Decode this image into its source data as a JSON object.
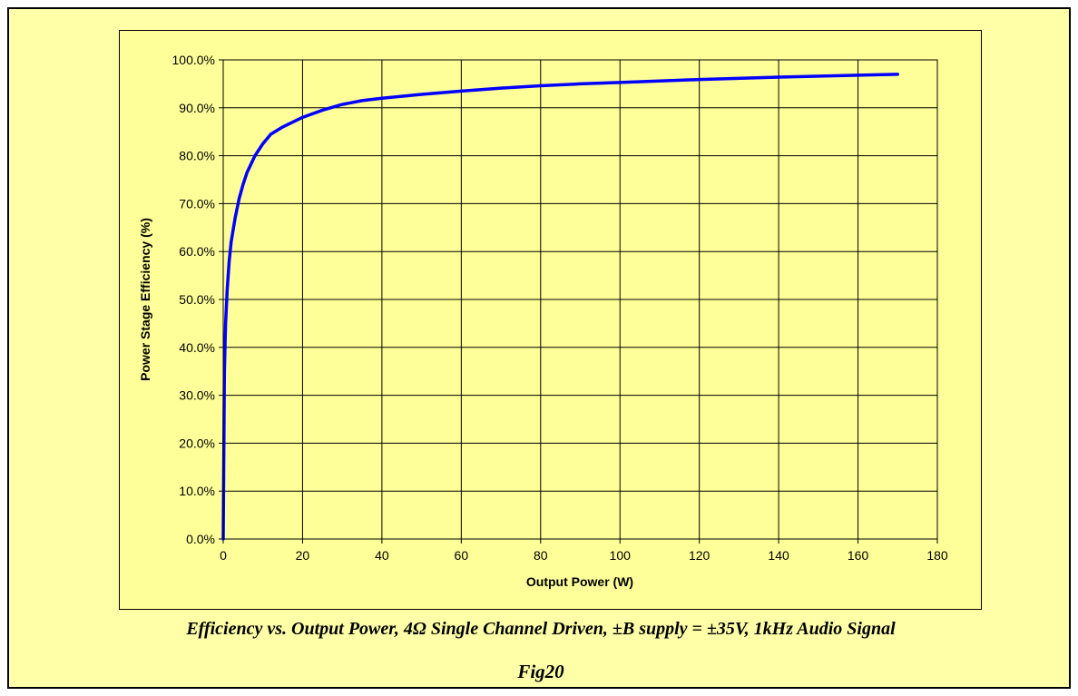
{
  "caption": "Efficiency vs. Output Power, 4Ω Single Channel Driven, ±B supply = ±35V, 1kHz Audio Signal",
  "figure_label": "Fig20",
  "chart_data": {
    "type": "line",
    "title": "",
    "xlabel": "Output Power (W)",
    "ylabel": "Power Stage Efficiency (%)",
    "xlim": [
      0,
      180
    ],
    "ylim": [
      0,
      100
    ],
    "x_ticks": [
      0,
      20,
      40,
      60,
      80,
      100,
      120,
      140,
      160,
      180
    ],
    "x_tick_labels": [
      "0",
      "20",
      "40",
      "60",
      "80",
      "100",
      "120",
      "140",
      "160",
      "180"
    ],
    "y_ticks": [
      0,
      10,
      20,
      30,
      40,
      50,
      60,
      70,
      80,
      90,
      100
    ],
    "y_tick_labels": [
      "0.0%",
      "10.0%",
      "20.0%",
      "30.0%",
      "40.0%",
      "50.0%",
      "60.0%",
      "70.0%",
      "80.0%",
      "90.0%",
      "100.0%"
    ],
    "grid": true,
    "plot_background": "#ffff99",
    "series": [
      {
        "color": "#0000ff",
        "x": [
          0,
          0.3,
          0.6,
          1,
          1.5,
          2,
          3,
          4,
          5,
          6,
          8,
          10,
          12,
          15,
          20,
          25,
          30,
          35,
          40,
          50,
          60,
          70,
          80,
          90,
          100,
          120,
          140,
          160,
          170
        ],
        "y": [
          0,
          35,
          45,
          52,
          58,
          62,
          67,
          71,
          74,
          76.5,
          80,
          82.5,
          84.5,
          86,
          88,
          89.5,
          90.7,
          91.5,
          92,
          92.8,
          93.5,
          94.1,
          94.6,
          95,
          95.3,
          95.9,
          96.4,
          96.8,
          97
        ]
      }
    ]
  }
}
